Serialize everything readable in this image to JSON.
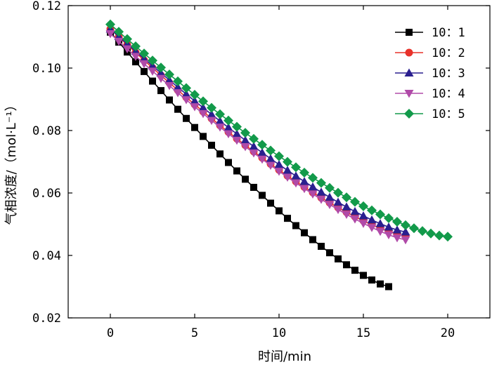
{
  "chart_data": {
    "type": "line",
    "title": "",
    "xlabel": "时间/min",
    "ylabel": "气相浓度/（mol·L⁻¹）",
    "xlim": [
      -2.5,
      22.5
    ],
    "ylim": [
      0.02,
      0.12
    ],
    "xticks": [
      0,
      5,
      10,
      15,
      20
    ],
    "yticks": [
      0.02,
      0.04,
      0.06,
      0.08,
      0.1,
      0.12
    ],
    "xtick_labels": [
      "0",
      "5",
      "10",
      "15",
      "20"
    ],
    "ytick_labels": [
      "0.02",
      "0.04",
      "0.06",
      "0.08",
      "0.10",
      "0.12"
    ],
    "grid": false,
    "legend_position": "top-right",
    "series": [
      {
        "name": "10：1",
        "color": "#000000",
        "marker": "square",
        "t0": 0,
        "t1": 16.5,
        "step": 0.5,
        "y0": 0.1115,
        "y1": 0.03,
        "curve": 1.3
      },
      {
        "name": "10：2",
        "color": "#e8322a",
        "marker": "circle",
        "t0": 0,
        "t1": 17.5,
        "step": 0.5,
        "y0": 0.1125,
        "y1": 0.0463,
        "curve": 1.35
      },
      {
        "name": "10：3",
        "color": "#2a1f8f",
        "marker": "triangle-up",
        "t0": 0,
        "t1": 17.5,
        "step": 0.5,
        "y0": 0.1125,
        "y1": 0.0475,
        "curve": 1.3
      },
      {
        "name": "10：4",
        "color": "#b04aa8",
        "marker": "triangle-down",
        "t0": 0,
        "t1": 17.5,
        "step": 0.5,
        "y0": 0.111,
        "y1": 0.045,
        "curve": 1.3
      },
      {
        "name": "10：5",
        "color": "#129a4a",
        "marker": "diamond",
        "t0": 0,
        "t1": 20,
        "step": 0.5,
        "y0": 0.114,
        "y1": 0.046,
        "curve": 1.4
      }
    ]
  }
}
